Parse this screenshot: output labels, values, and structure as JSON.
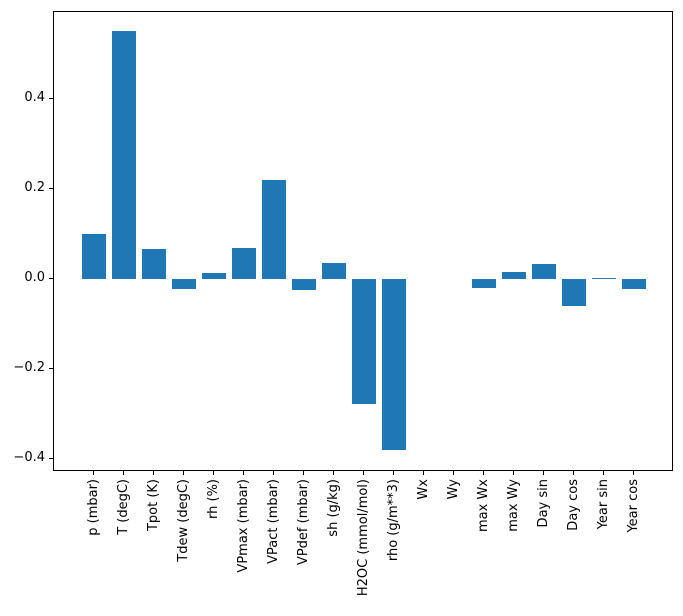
{
  "figure": {
    "background": "#ffffff"
  },
  "chart_data": {
    "type": "bar",
    "categories": [
      "p (mbar)",
      "T (degC)",
      "Tpot (K)",
      "Tdew (degC)",
      "rh (%)",
      "VPmax (mbar)",
      "VPact (mbar)",
      "VPdef (mbar)",
      "sh (g/kg)",
      "H2OC (mmol/mol)",
      "rho (g/m**3)",
      "Wx",
      "Wy",
      "max Wx",
      "max Wy",
      "Day sin",
      "Day cos",
      "Year sin",
      "Year cos"
    ],
    "values": [
      0.1,
      0.552,
      0.067,
      -0.021,
      0.015,
      0.07,
      0.221,
      -0.024,
      0.036,
      -0.276,
      -0.38,
      0.0,
      0.0,
      -0.019,
      0.017,
      0.035,
      -0.059,
      0.003,
      -0.022
    ],
    "bar_color": "#1f77b4",
    "axis_color": "#000000",
    "ylim": [
      -0.428,
      0.594
    ],
    "yticks": {
      "values": [
        0.4,
        0.2,
        0.0,
        -0.2,
        -0.4
      ],
      "labels": [
        "0.4",
        "0.2",
        "0.0",
        "−0.2",
        "−0.4"
      ]
    },
    "grid": false,
    "x_tick_rotation_deg": 90
  }
}
